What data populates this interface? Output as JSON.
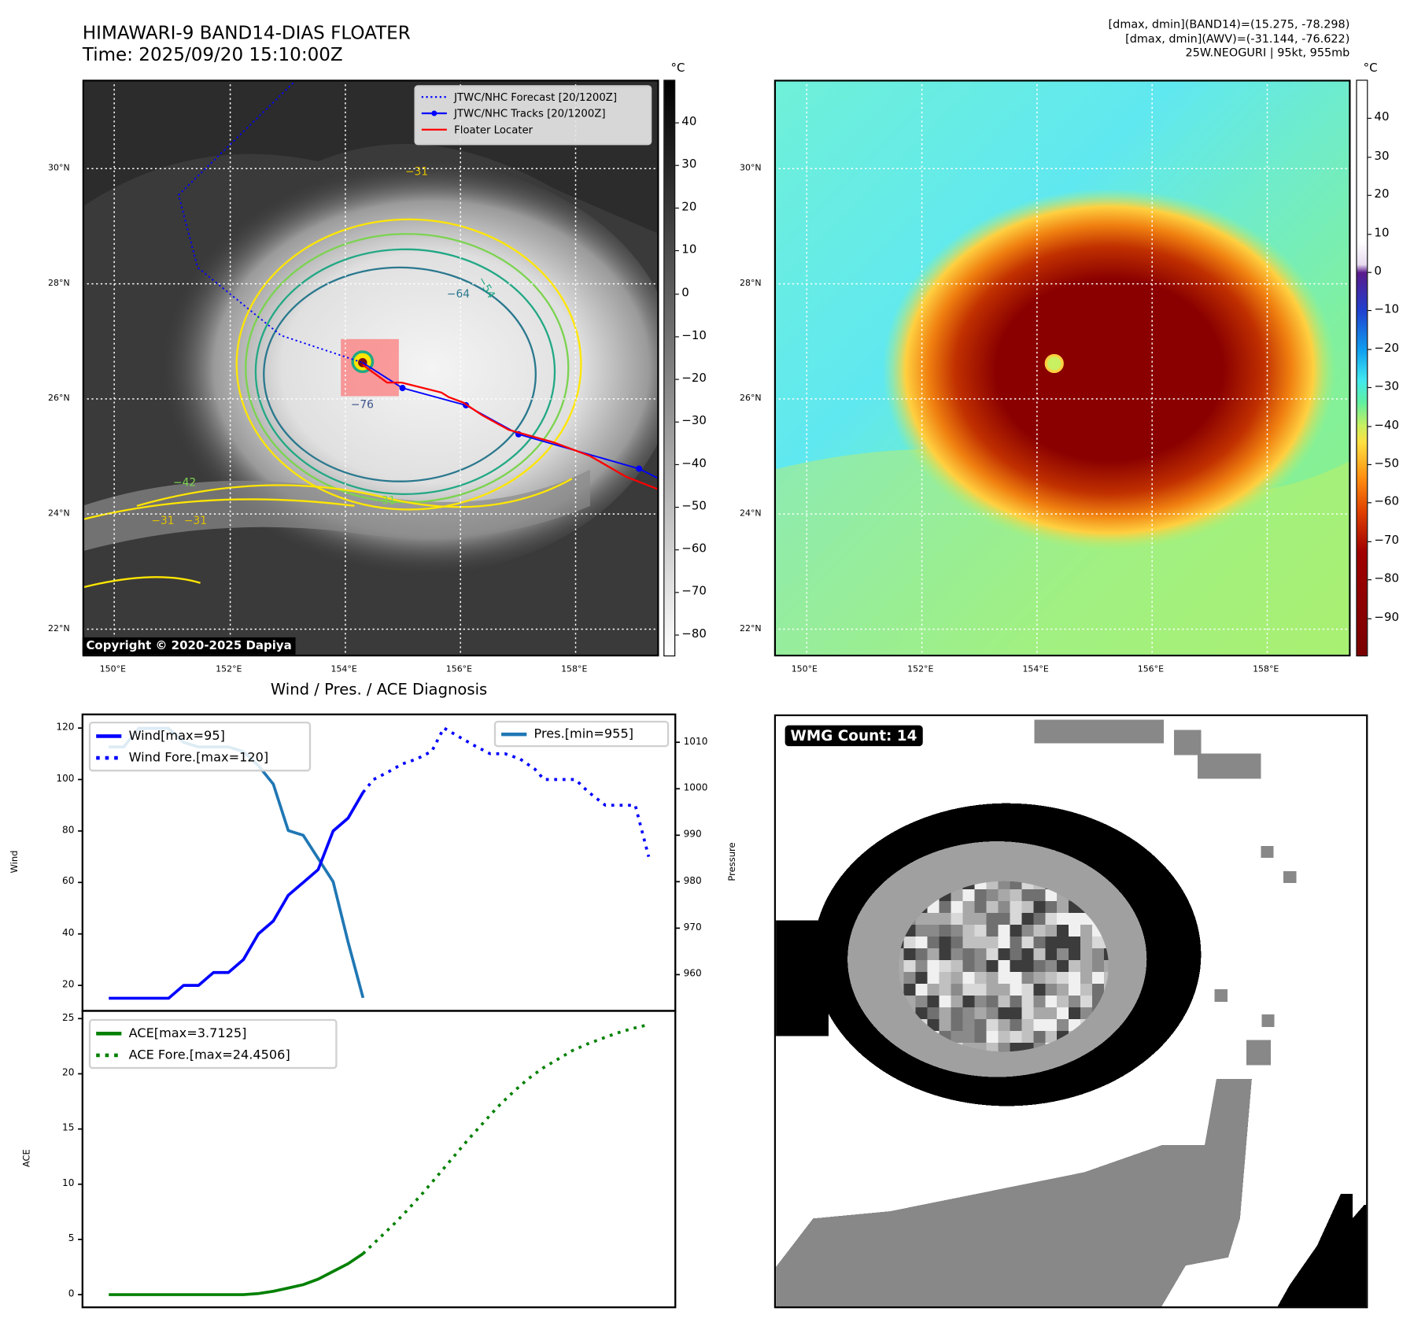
{
  "header": {
    "title_line1": "HIMAWARI-9 BAND14-DIAS FLOATER",
    "title_line2": "Time: 2025/09/20 15:10:00Z",
    "info_line1": "[dmax, dmin](BAND14)=(15.275, -78.298)",
    "info_line2": "[dmax, dmin](AWV)=(-31.144, -76.622)",
    "info_line3": "25W.NEOGURI | 95kt, 955mb"
  },
  "map_left": {
    "unit": "°C",
    "colorbar_ticks": [
      "40",
      "30",
      "20",
      "10",
      "0",
      "−10",
      "−20",
      "−30",
      "−40",
      "−50",
      "−60",
      "−70",
      "−80"
    ],
    "colorbar_range": [
      50,
      -85
    ],
    "lat_labels": [
      "30°N",
      "28°N",
      "26°N",
      "24°N",
      "22°N"
    ],
    "lon_labels": [
      "150°E",
      "152°E",
      "154°E",
      "156°E",
      "158°E"
    ],
    "contour_labels": [
      "−31",
      "−54",
      "−64",
      "−76",
      "−42",
      "−31",
      "−31",
      "−31"
    ],
    "legend": [
      "JTWC/NHC Forecast [20/1200Z]",
      "JTWC/NHC Tracks [20/1200Z]",
      "Floater Locater"
    ],
    "copyright": "Copyright © 2020-2025 Dapiya",
    "colors": {
      "forecast": "#0000ff",
      "tracks": "#0000ff",
      "floater": "#ff0000"
    }
  },
  "map_right": {
    "unit": "°C",
    "colorbar_ticks": [
      "40",
      "30",
      "20",
      "10",
      "0",
      "−10",
      "−20",
      "−30",
      "−40",
      "−50",
      "−60",
      "−70",
      "−80",
      "−90"
    ],
    "colorbar_range": [
      50,
      -100
    ],
    "lat_labels": [
      "30°N",
      "28°N",
      "26°N",
      "24°N",
      "22°N"
    ],
    "lon_labels": [
      "150°E",
      "152°E",
      "154°E",
      "156°E",
      "158°E"
    ]
  },
  "wmg": {
    "badge": "WMG Count: 14"
  },
  "chart_data": [
    {
      "type": "line",
      "title": "Wind / Pres. / ACE Diagnosis",
      "ylabel": "Wind",
      "ylabel_right": "Pressure",
      "xlim": [
        -1.76,
        37.88
      ],
      "ylim": [
        10.1,
        125.3
      ],
      "ylim_right": [
        952.2,
        1016
      ],
      "yticks": [
        20,
        40,
        60,
        80,
        100,
        120
      ],
      "yticks_right": [
        960,
        970,
        980,
        990,
        1000,
        1010
      ],
      "series": [
        {
          "name": "Wind[max=95]",
          "axis": "left",
          "style": "solid",
          "color": "#0000ff",
          "x": [
            0,
            1,
            2,
            3,
            4,
            5,
            6,
            7,
            8,
            9,
            10,
            11,
            12,
            13,
            14,
            15,
            16,
            17
          ],
          "y": [
            15,
            15,
            15,
            15,
            15,
            20,
            20,
            25,
            25,
            30,
            40,
            45,
            55,
            60,
            65,
            80,
            85,
            95
          ]
        },
        {
          "name": "Wind Fore.[max=120]",
          "axis": "left",
          "style": "dotted",
          "color": "#0000ff",
          "x": [
            17,
            17.7,
            18.7,
            19.6,
            20.6,
            21.6,
            22.4,
            23.6,
            24.5,
            25.5,
            26.5,
            27.5,
            28.5,
            29.1,
            31.2,
            32.1,
            33.2,
            35.2,
            36.1
          ],
          "y": [
            95,
            100,
            103,
            106,
            108,
            111,
            120,
            116,
            113,
            110,
            110,
            108,
            104,
            100,
            100,
            95,
            90,
            90,
            70
          ]
        },
        {
          "name": "Pres.[min=955]",
          "axis": "right",
          "style": "solid",
          "color": "#1f77b4",
          "x": [
            0,
            1,
            2,
            3,
            4,
            5,
            6,
            7,
            8,
            9,
            10,
            11,
            12,
            13,
            14,
            15,
            16,
            17
          ],
          "y": [
            1009,
            1009,
            1013,
            1013,
            1013,
            1010,
            1009,
            1009,
            1009,
            1008,
            1005,
            1001,
            991,
            990,
            985,
            980,
            967,
            955
          ]
        }
      ],
      "legend_left": "upper-left",
      "legend_right": "upper-right"
    },
    {
      "type": "line",
      "ylabel": "ACE",
      "xlim": [
        -1.76,
        37.88
      ],
      "ylim": [
        -1.15,
        25.7
      ],
      "yticks": [
        0,
        5,
        10,
        15,
        20,
        25
      ],
      "series": [
        {
          "name": "ACE[max=3.7125]",
          "style": "solid",
          "color": "#008000",
          "x": [
            0,
            1,
            2,
            3,
            4,
            5,
            6,
            7,
            8,
            9,
            10,
            11,
            12,
            13,
            14,
            15,
            16,
            17
          ],
          "y": [
            0,
            0,
            0,
            0,
            0,
            0,
            0,
            0,
            0,
            0,
            0.1,
            0.3,
            0.6,
            0.9,
            1.4,
            2.1,
            2.8,
            3.7125
          ]
        },
        {
          "name": "ACE Fore.[max=24.4506]",
          "style": "dotted",
          "color": "#008000",
          "x": [
            17,
            18,
            19,
            20,
            21,
            22,
            23,
            24,
            25,
            26,
            27,
            28,
            29,
            30,
            31,
            32,
            33,
            34,
            35,
            36.1
          ],
          "y": [
            3.7125,
            5,
            6.3,
            7.7,
            9.2,
            10.8,
            12.4,
            14,
            15.5,
            17,
            18.3,
            19.5,
            20.5,
            21.3,
            22.1,
            22.7,
            23.2,
            23.7,
            24.1,
            24.4506
          ]
        }
      ],
      "legend": "upper-left"
    }
  ]
}
